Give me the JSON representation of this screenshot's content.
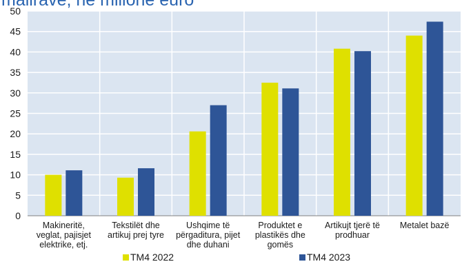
{
  "chart_data": {
    "type": "bar",
    "title": "mallrave, në milionë euro",
    "categories": [
      [
        "Makineritë,",
        "veglat, pajisjet",
        "elektrike, etj."
      ],
      [
        "Tekstilët dhe",
        "artikuj prej tyre"
      ],
      [
        "Ushqime të",
        "përgaditura, pijet",
        "dhe duhani"
      ],
      [
        "Produktet e",
        "plastikës dhe",
        "gomës"
      ],
      [
        "Artikujt tjerë të",
        "prodhuar"
      ],
      [
        "Metalet bazë"
      ]
    ],
    "series": [
      {
        "name": "TM4 2022",
        "color": "#dfe000",
        "values": [
          10.0,
          9.3,
          20.6,
          32.5,
          40.8,
          44.0
        ]
      },
      {
        "name": "TM4 2023",
        "color": "#2e5597",
        "values": [
          11.1,
          11.6,
          27.0,
          31.1,
          40.2,
          47.4
        ]
      }
    ],
    "xlabel": "",
    "ylabel": "",
    "ylim": [
      0,
      50
    ],
    "yticks": [
      0,
      5,
      10,
      15,
      20,
      25,
      30,
      35,
      40,
      45,
      50
    ],
    "grid": true,
    "plot_background": "#dbe5f1",
    "grid_color": "#ffffff",
    "title_color": "#2a64b0",
    "legend_position": "bottom"
  }
}
